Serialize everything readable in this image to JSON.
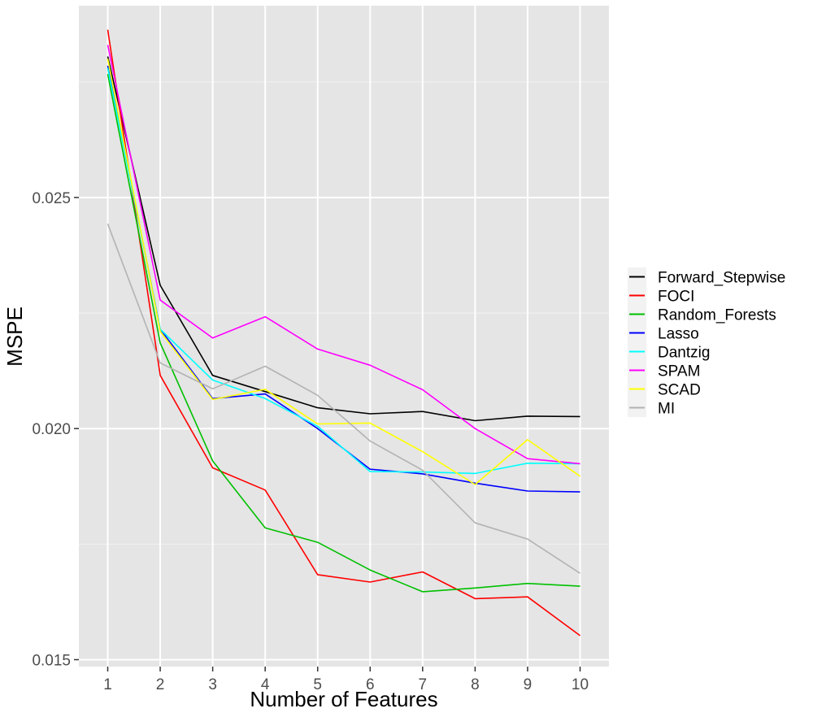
{
  "chart_data": {
    "type": "line",
    "xlabel": "Number of Features",
    "ylabel": "MSPE",
    "x": [
      1,
      2,
      3,
      4,
      5,
      6,
      7,
      8,
      9,
      10
    ],
    "xlim": [
      0.45,
      10.55
    ],
    "ylim": [
      0.01485,
      0.02915
    ],
    "x_ticks": [
      "1",
      "2",
      "3",
      "4",
      "5",
      "6",
      "7",
      "8",
      "9",
      "10"
    ],
    "y_ticks": [
      "0.015",
      "0.020",
      "0.025"
    ],
    "y_tick_values": [
      0.015,
      0.02,
      0.025
    ],
    "grid": true,
    "legend_position": "right",
    "series": [
      {
        "name": "Forward_Stepwise",
        "color": "#000000",
        "values": [
          0.02805,
          0.0231,
          0.02115,
          0.0208,
          0.02045,
          0.02032,
          0.02037,
          0.02017,
          0.02027,
          0.02026
        ]
      },
      {
        "name": "FOCI",
        "color": "#ff0000",
        "values": [
          0.02863,
          0.02115,
          0.01915,
          0.01867,
          0.01684,
          0.01668,
          0.0169,
          0.01632,
          0.01636,
          0.01552
        ]
      },
      {
        "name": "Random_Forests",
        "color": "#00c000",
        "values": [
          0.02767,
          0.02185,
          0.0193,
          0.01785,
          0.01754,
          0.01694,
          0.01647,
          0.01655,
          0.01665,
          0.01659
        ]
      },
      {
        "name": "Lasso",
        "color": "#0000ff",
        "values": [
          0.02785,
          0.02215,
          0.02065,
          0.02075,
          0.02,
          0.01912,
          0.01902,
          0.01882,
          0.01865,
          0.01863
        ]
      },
      {
        "name": "Dantzig",
        "color": "#00ffff",
        "values": [
          0.0278,
          0.02215,
          0.02105,
          0.02065,
          0.02005,
          0.01907,
          0.01906,
          0.01903,
          0.01925,
          0.01924
        ]
      },
      {
        "name": "SPAM",
        "color": "#ff00ff",
        "values": [
          0.0283,
          0.02278,
          0.02196,
          0.02242,
          0.02172,
          0.02137,
          0.02084,
          0.02,
          0.01935,
          0.01924
        ]
      },
      {
        "name": "SCAD",
        "color": "#ffff00",
        "values": [
          0.028,
          0.0221,
          0.02063,
          0.02085,
          0.0201,
          0.02012,
          0.0195,
          0.01879,
          0.01976,
          0.01897
        ]
      },
      {
        "name": "MI",
        "color": "#b3b3b3",
        "values": [
          0.02443,
          0.02142,
          0.02086,
          0.02135,
          0.02072,
          0.01973,
          0.0191,
          0.01796,
          0.01761,
          0.01687
        ]
      }
    ]
  }
}
